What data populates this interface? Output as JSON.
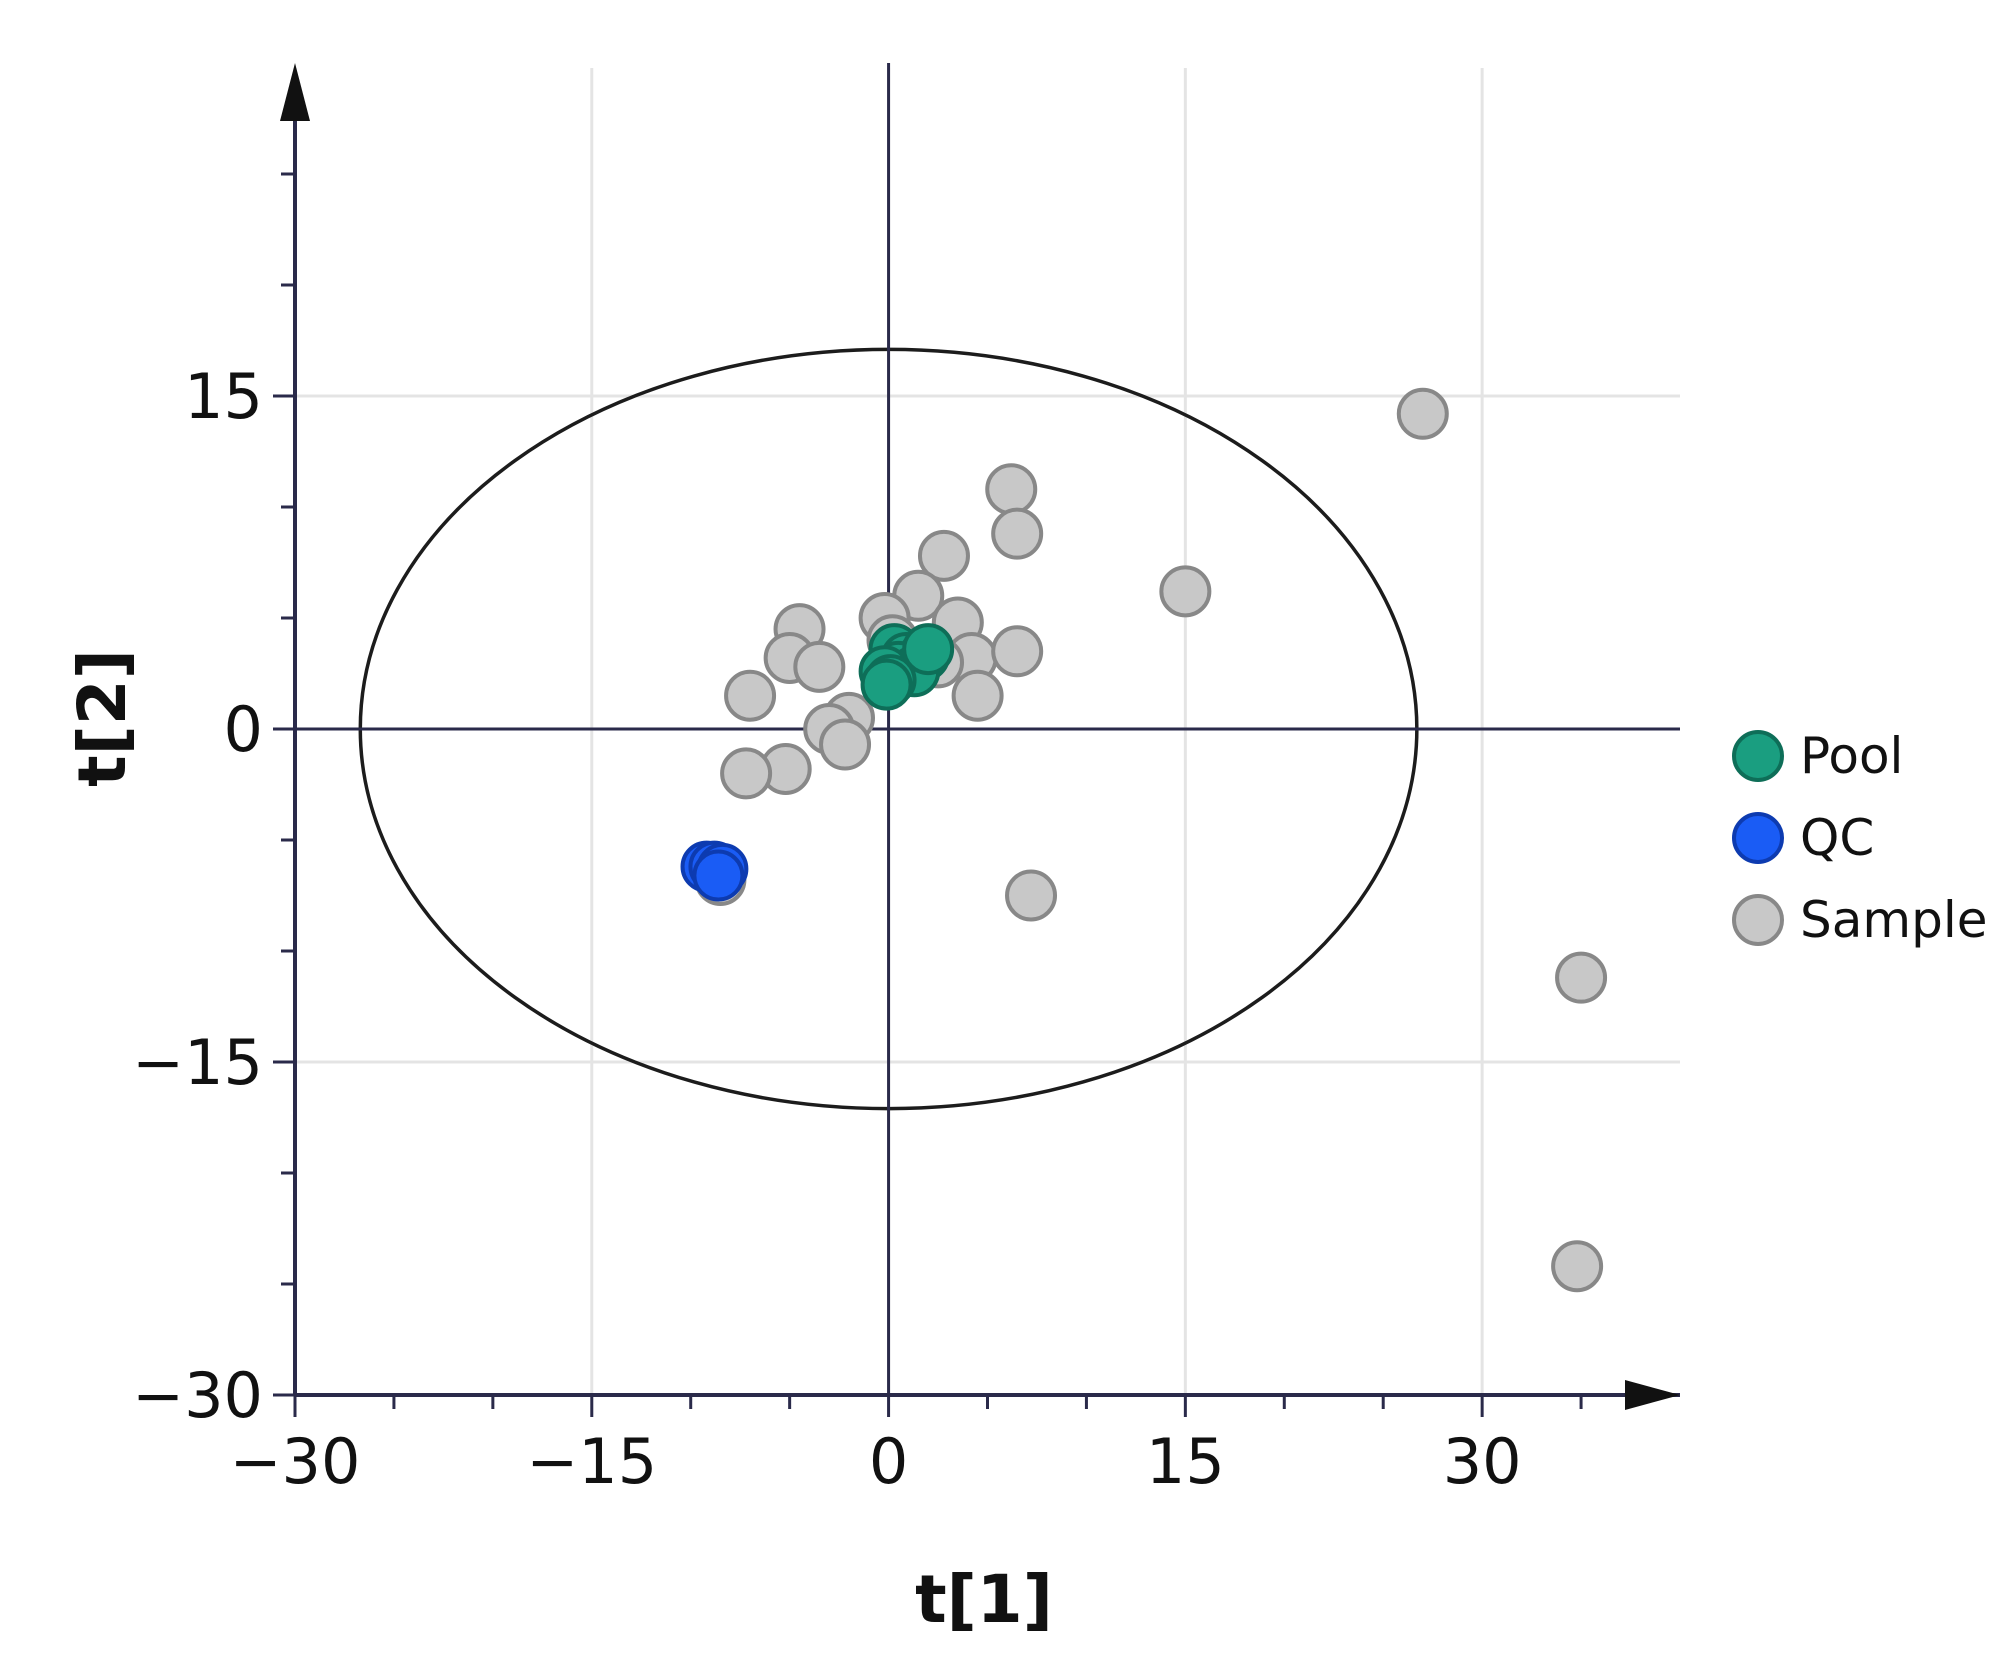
{
  "chart_data": {
    "type": "scatter",
    "title": "",
    "xlabel": "t[1]",
    "ylabel": "t[2]",
    "xlim": [
      -30,
      40
    ],
    "ylim": [
      -30,
      30
    ],
    "xticks": [
      -30,
      -15,
      0,
      15,
      30
    ],
    "yticks": [
      -30,
      -15,
      0,
      15
    ],
    "xtick_labels": [
      "−30",
      "−15",
      "0",
      "15",
      "30"
    ],
    "ytick_labels": [
      "−30",
      "−15",
      "0",
      "15"
    ],
    "grid": true,
    "legend_position": "right",
    "ellipse": {
      "center": [
        0,
        0
      ],
      "radius_x": 26.7,
      "radius_y": 17.1
    },
    "series": [
      {
        "name": "Sample",
        "color": "#c8c8c8",
        "stroke": "#888888",
        "points": [
          [
            27.0,
            14.2
          ],
          [
            6.2,
            10.8
          ],
          [
            6.5,
            8.8
          ],
          [
            2.8,
            7.8
          ],
          [
            1.5,
            6.0
          ],
          [
            -0.2,
            5.0
          ],
          [
            15.0,
            6.2
          ],
          [
            -4.5,
            4.5
          ],
          [
            -5.0,
            3.2
          ],
          [
            -3.5,
            2.8
          ],
          [
            3.5,
            4.8
          ],
          [
            4.2,
            3.2
          ],
          [
            6.5,
            3.5
          ],
          [
            4.5,
            1.5
          ],
          [
            -7.0,
            1.5
          ],
          [
            -2.0,
            0.5
          ],
          [
            -3.0,
            0.0
          ],
          [
            -2.2,
            -0.7
          ],
          [
            -5.2,
            -1.8
          ],
          [
            -7.2,
            -2.0
          ],
          [
            0.2,
            4.0
          ],
          [
            2.5,
            3.0
          ],
          [
            7.2,
            -7.5
          ],
          [
            35.0,
            -11.2
          ],
          [
            34.8,
            -24.2
          ],
          [
            -8.5,
            -6.8
          ]
        ]
      },
      {
        "name": "Pool",
        "color": "#1a9e80",
        "stroke": "#0e6e58",
        "points": [
          [
            0.3,
            3.6
          ],
          [
            0.9,
            3.2
          ],
          [
            1.8,
            3.3
          ],
          [
            0.5,
            2.8
          ],
          [
            1.3,
            2.6
          ],
          [
            -0.2,
            2.6
          ],
          [
            0.1,
            2.2
          ],
          [
            2.0,
            3.6
          ],
          [
            -0.1,
            2.0
          ]
        ]
      },
      {
        "name": "QC",
        "color": "#1a5cf5",
        "stroke": "#0d3bb0",
        "points": [
          [
            -9.2,
            -6.2
          ],
          [
            -8.8,
            -6.2
          ],
          [
            -8.4,
            -6.3
          ],
          [
            -8.6,
            -6.6
          ]
        ]
      }
    ],
    "legend": [
      "Pool",
      "QC",
      "Sample"
    ]
  }
}
